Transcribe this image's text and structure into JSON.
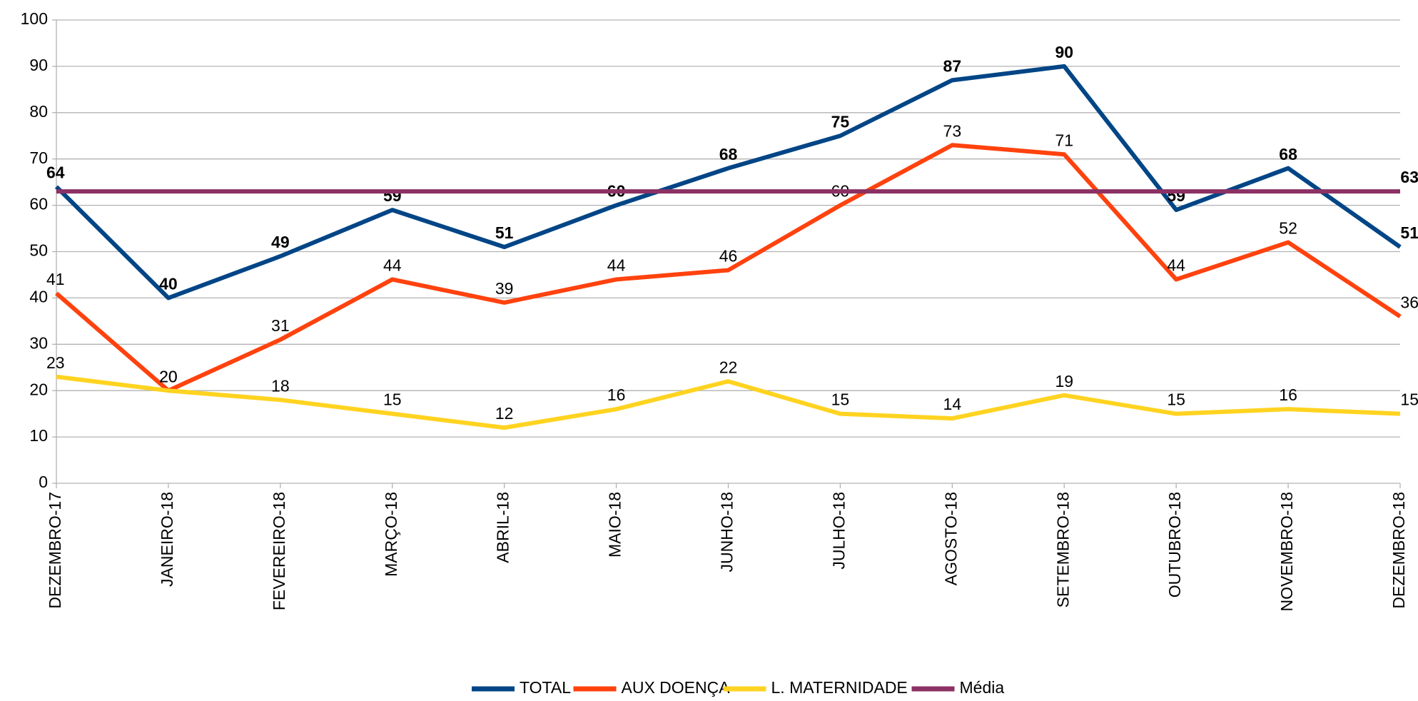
{
  "chart_data": {
    "type": "line",
    "categories": [
      "DEZEMBRO-17",
      "JANEIRO-18",
      "FEVEREIRO-18",
      "MARÇO-18",
      "ABRIL-18",
      "MAIO-18",
      "JUNHO-18",
      "JULHO-18",
      "AGOSTO-18",
      "SETEMBRO-18",
      "OUTUBRO-18",
      "NOVEMBRO-18",
      "DEZEMBRO-18"
    ],
    "series": [
      {
        "name": "TOTAL",
        "color": "#004586",
        "label_bold": true,
        "data_labels": "all",
        "values": [
          64,
          40,
          49,
          59,
          51,
          60,
          68,
          75,
          87,
          90,
          59,
          68,
          51
        ]
      },
      {
        "name": "AUX DOENÇA",
        "color": "#ff420e",
        "label_bold": false,
        "data_labels": "all",
        "values": [
          41,
          20,
          31,
          44,
          39,
          44,
          46,
          60,
          73,
          71,
          44,
          52,
          36
        ]
      },
      {
        "name": "L. MATERNIDADE",
        "color": "#ffd320",
        "label_bold": false,
        "data_labels": "all",
        "values": [
          23,
          20,
          18,
          15,
          12,
          16,
          22,
          15,
          14,
          19,
          15,
          16,
          15
        ]
      },
      {
        "name": "Média",
        "color": "#8b3163",
        "label_bold": true,
        "data_labels": "last",
        "values": [
          63,
          63,
          63,
          63,
          63,
          63,
          63,
          63,
          63,
          63,
          63,
          63,
          63
        ]
      }
    ],
    "ylim": [
      0,
      100
    ],
    "yticks": [
      0,
      10,
      20,
      30,
      40,
      50,
      60,
      70,
      80,
      90,
      100
    ],
    "grid": true,
    "legend": "bottom"
  }
}
